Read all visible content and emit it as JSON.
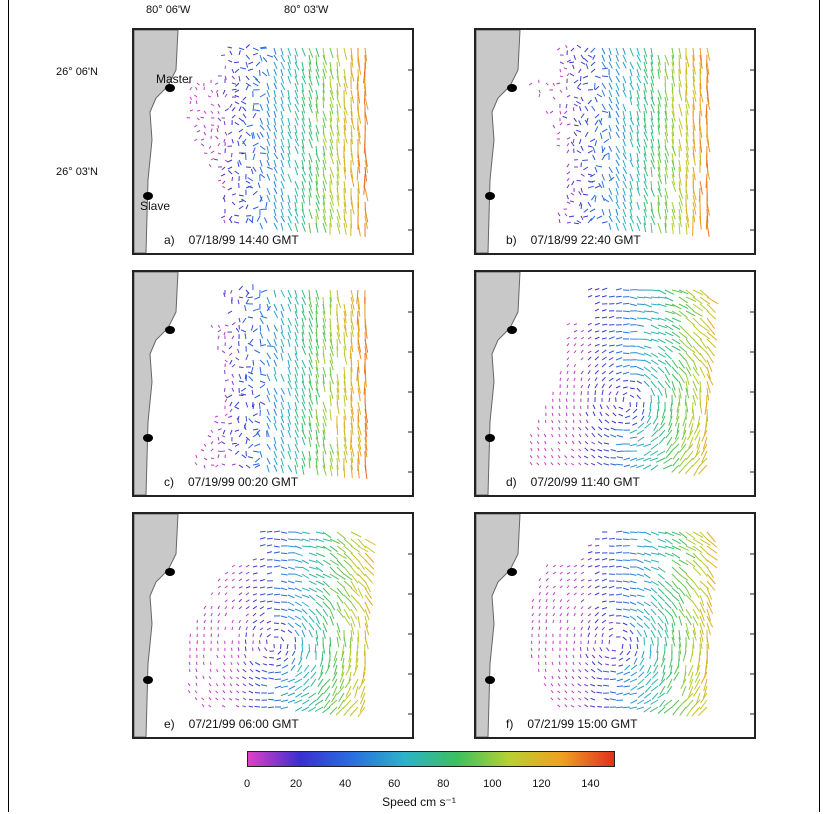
{
  "axes": {
    "lon_labels": [
      "80° 06'W",
      "80° 03'W"
    ],
    "lat_labels": [
      "26° 06'N",
      "26° 03'N"
    ]
  },
  "sites": {
    "master": "Master",
    "slave": "Slave"
  },
  "panels": [
    {
      "letter": "a)",
      "time": "07/18/99 14:40 GMT"
    },
    {
      "letter": "b)",
      "time": "07/18/99 22:40 GMT"
    },
    {
      "letter": "c)",
      "time": "07/19/99 00:20 GMT"
    },
    {
      "letter": "d)",
      "time": "07/20/99 11:40 GMT"
    },
    {
      "letter": "e)",
      "time": "07/21/99 06:00 GMT"
    },
    {
      "letter": "f)",
      "time": "07/21/99 15:00 GMT"
    }
  ],
  "colorbar": {
    "ticks": [
      "0",
      "20",
      "40",
      "60",
      "80",
      "100",
      "120",
      "140"
    ],
    "range": [
      0,
      150
    ],
    "title": "Speed cm s⁻¹",
    "colors": [
      "#e040c8",
      "#3a2fd0",
      "#2a6fe0",
      "#2bb3c8",
      "#3cc060",
      "#b8d030",
      "#f0a020",
      "#e03020"
    ]
  },
  "colors": {
    "land": "#c8c8c8",
    "site_marker": "#000000"
  }
}
